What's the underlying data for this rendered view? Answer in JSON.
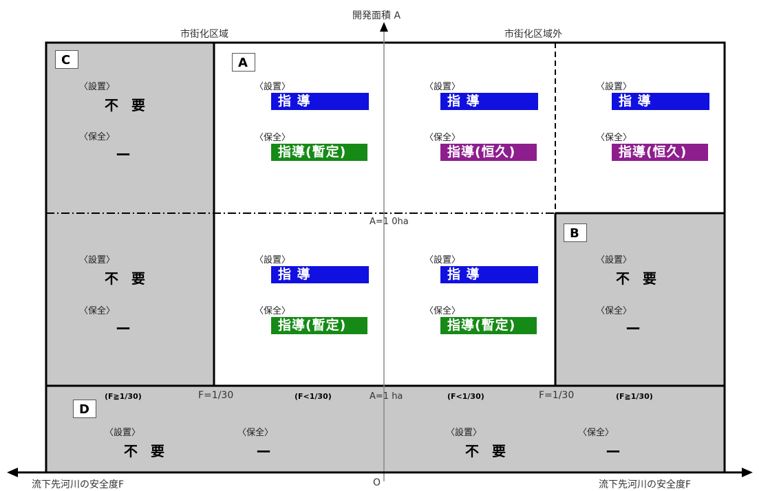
{
  "axes": {
    "y_label": "開発面積 A",
    "x_left_label": "流下先河川の安全度F",
    "x_right_label": "流下先河川の安全度F",
    "origin_label": "O"
  },
  "regions": {
    "urban": "市街化区域",
    "non_urban": "市街化区域外"
  },
  "thresholds": {
    "a10": "A=1 0ha",
    "a1": "A=1 ha",
    "f_left_ge": "(F≧1/30)",
    "f_left_eq": "F=1/30",
    "f_left_lt": "(F<1/30)",
    "f_right_lt": "(F<1/30)",
    "f_right_eq": "F=1/30",
    "f_right_ge": "(F≧1/30)"
  },
  "keywords": {
    "setsuchi": "〈設置〉",
    "hozen": "〈保全〉"
  },
  "values": {
    "fuyou": "不 要",
    "dash": "ー",
    "shidou": "指 導",
    "shidou_zantei": "指導(暫定)",
    "shidou_koukyu": "指導(恒久)"
  },
  "zone_letters": {
    "a": "A",
    "b": "B",
    "c": "C",
    "d": "D"
  },
  "colors": {
    "gray_zone": "#c8c8c8",
    "shidou_blue": "#1010e0",
    "zantei_green": "#168a16",
    "koukyu_purple": "#8e1e8e"
  }
}
